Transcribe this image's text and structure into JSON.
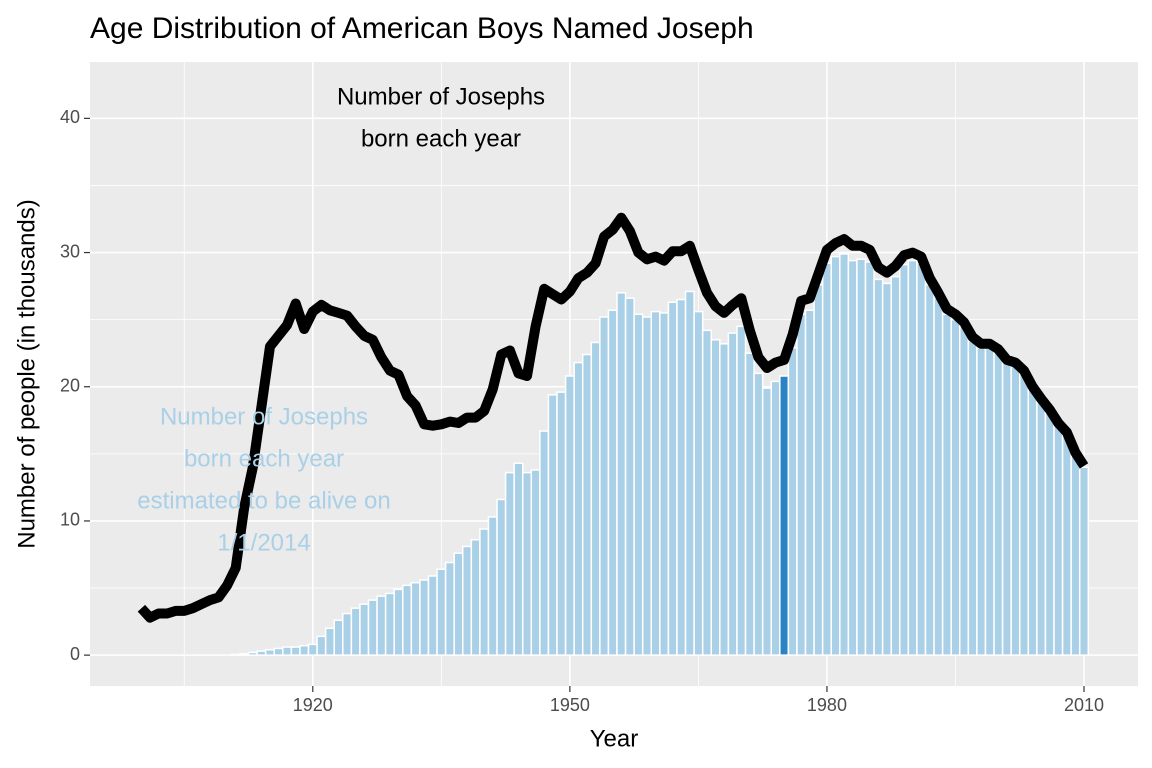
{
  "chart_data": {
    "type": "bar_line",
    "title": "Age Distribution of American Boys Named Joseph",
    "xlabel": "Year",
    "ylabel": "Number of people (in thousands)",
    "x": [
      1900,
      1901,
      1902,
      1903,
      1904,
      1905,
      1906,
      1907,
      1908,
      1909,
      1910,
      1911,
      1912,
      1913,
      1914,
      1915,
      1916,
      1917,
      1918,
      1919,
      1920,
      1921,
      1922,
      1923,
      1924,
      1925,
      1926,
      1927,
      1928,
      1929,
      1930,
      1931,
      1932,
      1933,
      1934,
      1935,
      1936,
      1937,
      1938,
      1939,
      1940,
      1941,
      1942,
      1943,
      1944,
      1945,
      1946,
      1947,
      1948,
      1949,
      1950,
      1951,
      1952,
      1953,
      1954,
      1955,
      1956,
      1957,
      1958,
      1959,
      1960,
      1961,
      1962,
      1963,
      1964,
      1965,
      1966,
      1967,
      1968,
      1969,
      1970,
      1971,
      1972,
      1973,
      1974,
      1975,
      1976,
      1977,
      1978,
      1979,
      1980,
      1981,
      1982,
      1983,
      1984,
      1985,
      1986,
      1987,
      1988,
      1989,
      1990,
      1991,
      1992,
      1993,
      1994,
      1995,
      1996,
      1997,
      1998,
      1999,
      2000,
      2001,
      2002,
      2003,
      2004,
      2005,
      2006,
      2007,
      2008,
      2009,
      2010
    ],
    "bars": {
      "color": "#a9d0e6",
      "highlight_year": 1975,
      "highlight_color": "#2b83c6",
      "values": [
        0,
        0,
        0,
        0,
        0,
        0,
        0,
        0,
        0,
        0,
        0,
        0.05,
        0.1,
        0.2,
        0.3,
        0.4,
        0.5,
        0.6,
        0.6,
        0.7,
        0.8,
        1.4,
        2.0,
        2.6,
        3.1,
        3.5,
        3.8,
        4.1,
        4.4,
        4.6,
        4.9,
        5.2,
        5.4,
        5.6,
        5.9,
        6.4,
        6.9,
        7.6,
        8.1,
        8.6,
        9.4,
        10.3,
        11.6,
        13.6,
        14.3,
        13.6,
        13.8,
        16.7,
        19.4,
        19.6,
        20.8,
        21.8,
        22.4,
        23.3,
        25.2,
        25.7,
        27.0,
        26.6,
        25.4,
        25.2,
        25.6,
        25.5,
        26.3,
        26.5,
        27.1,
        25.6,
        24.2,
        23.5,
        23.2,
        24.0,
        24.5,
        22.5,
        21.0,
        19.9,
        20.4,
        20.8,
        22.9,
        25.4,
        25.7,
        27.6,
        29.2,
        29.7,
        29.9,
        29.4,
        29.5,
        29.3,
        28.0,
        27.7,
        28.2,
        29.1,
        29.4,
        29.2,
        27.6,
        26.6,
        25.4,
        25.0,
        24.5,
        23.4,
        22.9,
        22.9,
        22.6,
        21.8,
        21.6,
        21.0,
        19.8,
        18.9,
        18.2,
        17.2,
        16.5,
        15.0,
        14.0
      ]
    },
    "line": {
      "color": "#000000",
      "values": [
        3.5,
        2.8,
        3.1,
        3.1,
        3.3,
        3.3,
        3.5,
        3.8,
        4.1,
        4.3,
        5.2,
        6.5,
        11.0,
        14.0,
        18.5,
        23.0,
        23.8,
        24.6,
        26.2,
        24.3,
        25.6,
        26.1,
        25.7,
        25.5,
        25.3,
        24.5,
        23.8,
        23.5,
        22.2,
        21.2,
        20.9,
        19.3,
        18.6,
        17.2,
        17.1,
        17.2,
        17.4,
        17.3,
        17.7,
        17.7,
        18.2,
        19.8,
        22.4,
        22.7,
        21.0,
        20.8,
        24.5,
        27.3,
        26.9,
        26.5,
        27.1,
        28.1,
        28.5,
        29.2,
        31.2,
        31.7,
        32.6,
        31.6,
        30.0,
        29.5,
        29.7,
        29.4,
        30.1,
        30.1,
        30.5,
        28.7,
        27.0,
        26.0,
        25.5,
        26.1,
        26.6,
        24.2,
        22.2,
        21.4,
        21.8,
        22.0,
        23.9,
        26.4,
        26.6,
        28.4,
        30.2,
        30.7,
        31.0,
        30.5,
        30.5,
        30.2,
        28.9,
        28.5,
        29.0,
        29.8,
        30.0,
        29.7,
        28.1,
        27.0,
        25.8,
        25.4,
        24.8,
        23.7,
        23.2,
        23.2,
        22.8,
        22.0,
        21.8,
        21.2,
        20.0,
        19.1,
        18.3,
        17.3,
        16.6,
        15.1,
        14.1
      ]
    },
    "annotations": [
      {
        "lines": [
          "Number of Josephs",
          "born each year"
        ],
        "color": "#000000"
      },
      {
        "lines": [
          "Number of Josephs",
          "born each year",
          "estimated to be alive on",
          "1/1/2014"
        ],
        "color": "#a9d0e6"
      }
    ],
    "xlim": [
      1894,
      2016.3
    ],
    "ylim": [
      -2.3,
      44.2
    ],
    "xticks": [
      1920,
      1950,
      1980,
      2010
    ],
    "xminor": [
      1905,
      1935,
      1965,
      1995
    ],
    "yticks": [
      0,
      10,
      20,
      30,
      40
    ],
    "yminor": [
      5,
      15,
      25,
      35
    ],
    "grid": true
  }
}
